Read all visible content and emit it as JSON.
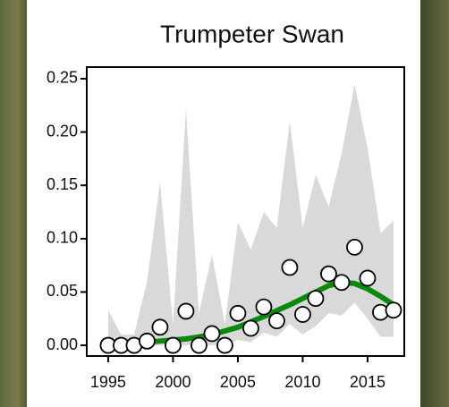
{
  "chart_data": {
    "type": "scatter",
    "title": "Trumpeter Swan",
    "xlim": [
      1993.35,
      2017.83
    ],
    "ylim": [
      -0.01,
      0.2609
    ],
    "xticks": [
      1995,
      2000,
      2005,
      2010,
      2015
    ],
    "yticks": [
      {
        "value": 0,
        "label": "0.00"
      },
      {
        "value": 0.05,
        "label": "0.05"
      },
      {
        "value": 0.1,
        "label": "0.10"
      },
      {
        "value": 0.15,
        "label": "0.15"
      },
      {
        "value": 0.2,
        "label": "0.20"
      },
      {
        "value": 0.25,
        "label": "0.25"
      }
    ],
    "band": {
      "color": "#d9d9d9",
      "x": [
        1995,
        1996,
        1997,
        1998,
        1999,
        2000,
        2001,
        2002,
        2003,
        2004,
        2005,
        2006,
        2007,
        2008,
        2009,
        2010,
        2011,
        2012,
        2013,
        2014,
        2015,
        2016,
        2017
      ],
      "upper": [
        0.033,
        0.01,
        0.01,
        0.06,
        0.153,
        0.02,
        0.222,
        0.03,
        0.085,
        0.02,
        0.115,
        0.09,
        0.125,
        0.11,
        0.21,
        0.11,
        0.16,
        0.13,
        0.18,
        0.245,
        0.185,
        0.105,
        0.117
      ],
      "lower": [
        0,
        0,
        0,
        0,
        0,
        0,
        0,
        0,
        0,
        0,
        0.005,
        0.003,
        0.012,
        0.008,
        0.02,
        0.01,
        0.018,
        0.03,
        0.028,
        0.04,
        0.025,
        0.008,
        0.008
      ]
    },
    "trend": {
      "color": "#0a8a0a",
      "x": [
        1995,
        1997,
        1999,
        2001,
        2003,
        2005,
        2007,
        2009,
        2011,
        2012,
        2013,
        2014,
        2015,
        2016,
        2017
      ],
      "values": [
        0.001,
        0.002,
        0.004,
        0.006,
        0.01,
        0.017,
        0.027,
        0.038,
        0.05,
        0.056,
        0.059,
        0.058,
        0.053,
        0.046,
        0.038
      ]
    },
    "points": {
      "x": [
        1995,
        1996,
        1997,
        1998,
        1999,
        2000,
        2001,
        2002,
        2003,
        2004,
        2005,
        2006,
        2007,
        2008,
        2009,
        2010,
        2011,
        2012,
        2013,
        2014,
        2015,
        2016,
        2017
      ],
      "values": [
        0,
        0,
        0,
        0.004,
        0.017,
        0,
        0.032,
        0,
        0.011,
        0,
        0.03,
        0.016,
        0.036,
        0.023,
        0.073,
        0.029,
        0.044,
        0.067,
        0.059,
        0.092,
        0.063,
        0.031,
        0.033
      ]
    }
  }
}
